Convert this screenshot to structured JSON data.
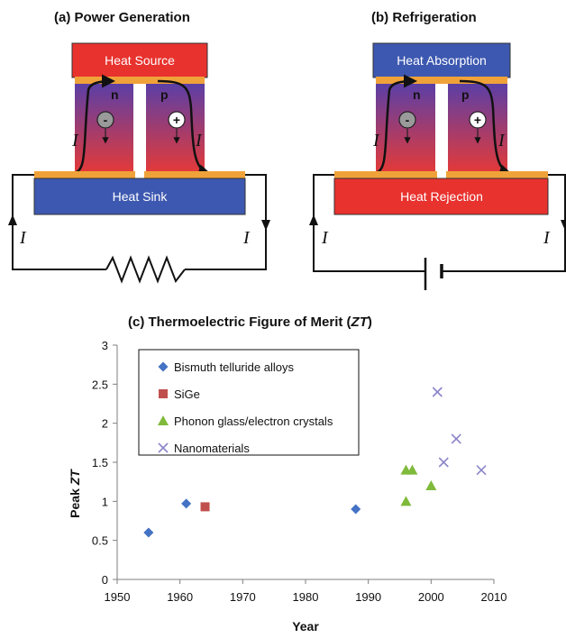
{
  "panels": {
    "a": {
      "title": "(a) Power Generation",
      "top_label": "Heat Source",
      "bottom_label": "Heat Sink",
      "n_label": "n",
      "p_label": "p",
      "minus": "-",
      "plus": "+",
      "current_label": "I"
    },
    "b": {
      "title": "(b) Refrigeration",
      "top_label": "Heat Absorption",
      "bottom_label": "Heat Rejection",
      "n_label": "n",
      "p_label": "p",
      "minus": "-",
      "plus": "+",
      "current_label": "I"
    }
  },
  "colors": {
    "hot": "#e8322e",
    "cold": "#3d58b0",
    "contact": "#f0a23a",
    "leg_top": "#5b3fa6",
    "leg_bottom": "#e23a3a",
    "nanomaterials": "#8b85c9",
    "bismuth": "#4472c4",
    "sige": "#c0504d",
    "phonon": "#7fba3b"
  },
  "chart_data": {
    "type": "scatter",
    "title_prefix": "(c) Thermoelectric Figure of Merit (",
    "title_italic": "ZT",
    "title_suffix": ")",
    "xlabel": "Year",
    "ylabel_prefix": "Peak ",
    "ylabel_italic": "ZT",
    "xlim": [
      1950,
      2010
    ],
    "ylim": [
      0,
      3
    ],
    "xticks": [
      "1950",
      "1960",
      "1970",
      "1980",
      "1990",
      "2000",
      "2010"
    ],
    "yticks": [
      "0",
      "0.5",
      "1",
      "1.5",
      "2",
      "2.5",
      "3"
    ],
    "grid": false,
    "legend_position": "top-left",
    "series": [
      {
        "name": "Bismuth telluride alloys",
        "marker": "diamond",
        "color": "#4472c4",
        "points": [
          [
            1955,
            0.6
          ],
          [
            1961,
            0.97
          ],
          [
            1988,
            0.9
          ]
        ]
      },
      {
        "name": "SiGe",
        "marker": "square",
        "color": "#c0504d",
        "points": [
          [
            1964,
            0.93
          ]
        ]
      },
      {
        "name": "Phonon glass/electron crystals",
        "marker": "triangle",
        "color": "#7fba3b",
        "points": [
          [
            1996,
            1.4
          ],
          [
            1997,
            1.4
          ],
          [
            1996,
            1.0
          ],
          [
            2000,
            1.2
          ]
        ]
      },
      {
        "name": "Nanomaterials",
        "marker": "x",
        "color": "#8b85c9",
        "points": [
          [
            2001,
            2.4
          ],
          [
            2002,
            1.5
          ],
          [
            2004,
            1.8
          ],
          [
            2008,
            1.4
          ]
        ]
      }
    ]
  }
}
